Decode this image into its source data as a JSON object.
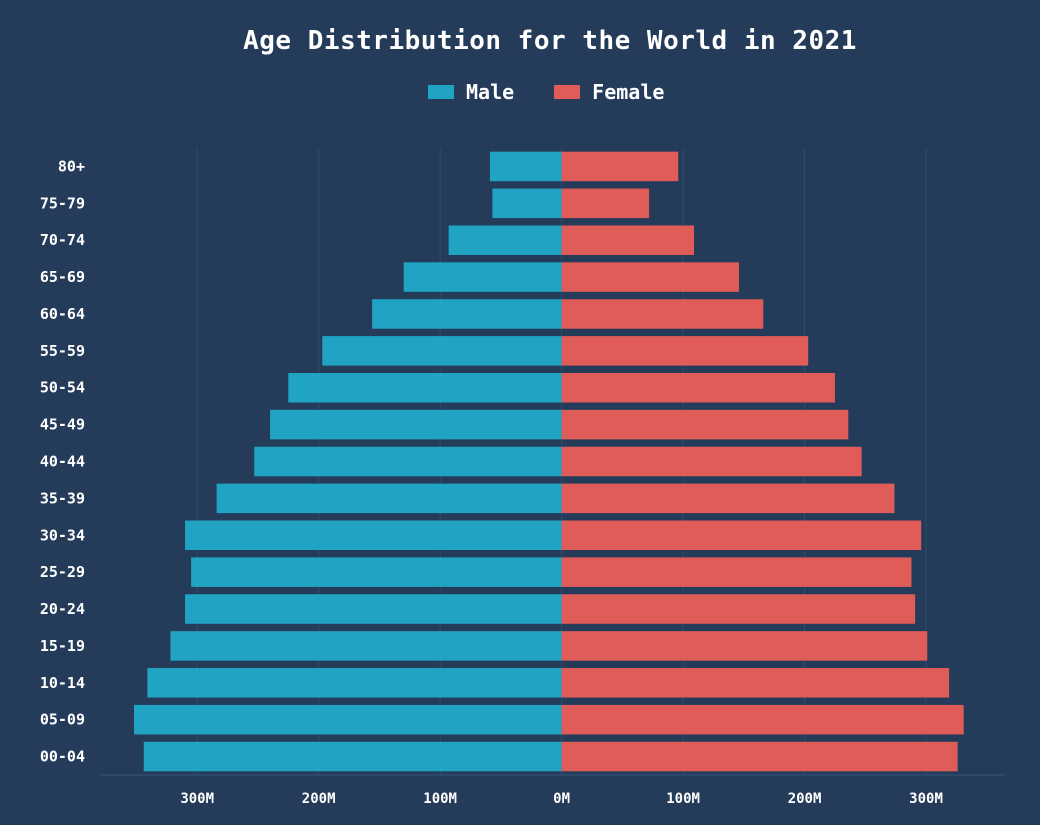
{
  "chart_data": {
    "type": "bar",
    "orientation": "horizontal",
    "title": "Age Distribution for the World in 2021",
    "categories": [
      "00-04",
      "05-09",
      "10-14",
      "15-19",
      "20-24",
      "25-29",
      "30-34",
      "35-39",
      "40-44",
      "45-49",
      "50-54",
      "55-59",
      "60-64",
      "65-69",
      "70-74",
      "75-79",
      "80+"
    ],
    "series": [
      {
        "name": "Male",
        "color": "#21a3c4",
        "values": [
          344,
          352,
          341,
          322,
          310,
          305,
          310,
          284,
          253,
          240,
          225,
          197,
          156,
          130,
          93,
          57,
          59
        ]
      },
      {
        "name": "Female",
        "color": "#e05c58",
        "values": [
          326,
          331,
          319,
          301,
          291,
          288,
          296,
          274,
          247,
          236,
          225,
          203,
          166,
          146,
          109,
          72,
          96
        ]
      }
    ],
    "unit": "M",
    "xlim": [
      -380,
      365
    ],
    "x_ticks": [
      -300,
      -200,
      -100,
      0,
      100,
      200,
      300
    ],
    "x_tick_labels": [
      "300M",
      "200M",
      "100M",
      "0M",
      "100M",
      "200M",
      "300M"
    ],
    "legend_position": "top-center",
    "grid": true
  }
}
